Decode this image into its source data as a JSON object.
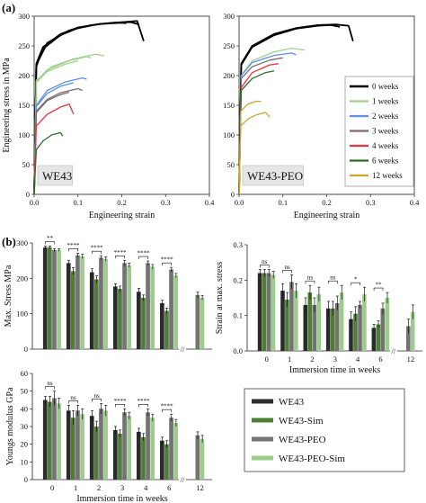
{
  "panel_letters": {
    "a": "(a)",
    "b": "(b)"
  },
  "colors": {
    "0 weeks": "#000000",
    "1 weeks": "#9fd18c",
    "2 weeks": "#5b8fe6",
    "3 weeks": "#7a6a72",
    "4 weeks": "#e3343f",
    "6 weeks": "#2e6b2a",
    "12 weeks": "#c9a52b",
    "WE43": "#2b2b2b",
    "WE43-Sim": "#4e7d35",
    "WE43-PEO": "#737373",
    "WE43-PEO-Sim": "#9ccc8b"
  },
  "chart_data": [
    {
      "type": "line",
      "title": "",
      "material_label": "WE43",
      "xlabel": "Engineering strain",
      "ylabel": "Engineering stress in MPa",
      "xlim": [
        0,
        0.4
      ],
      "ylim": [
        0,
        300
      ],
      "xticks": [
        "0.0",
        "0.1",
        "0.2",
        "0.3",
        "0.4"
      ],
      "yticks": [
        "0",
        "50",
        "100",
        "150",
        "200",
        "250",
        "300"
      ],
      "series": [
        {
          "name": "0 weeks",
          "curves": [
            [
              [
                0,
                0
              ],
              [
                0.005,
                215
              ],
              [
                0.02,
                245
              ],
              [
                0.06,
                268
              ],
              [
                0.1,
                280
              ],
              [
                0.15,
                287
              ],
              [
                0.2,
                290
              ],
              [
                0.22,
                291
              ],
              [
                0.235,
                292
              ],
              [
                0.25,
                258
              ]
            ],
            [
              [
                0,
                0
              ],
              [
                0.005,
                220
              ],
              [
                0.02,
                248
              ],
              [
                0.06,
                270
              ],
              [
                0.1,
                281
              ],
              [
                0.15,
                287
              ],
              [
                0.2,
                289
              ],
              [
                0.21,
                288
              ]
            ],
            [
              [
                0,
                0
              ],
              [
                0.005,
                218
              ],
              [
                0.03,
                255
              ],
              [
                0.08,
                276
              ],
              [
                0.13,
                285
              ],
              [
                0.18,
                289
              ],
              [
                0.22,
                290
              ],
              [
                0.24,
                286
              ]
            ]
          ]
        },
        {
          "name": "1 weeks",
          "curves": [
            [
              [
                0,
                0
              ],
              [
                0.005,
                190
              ],
              [
                0.03,
                210
              ],
              [
                0.08,
                225
              ],
              [
                0.12,
                232
              ],
              [
                0.13,
                230
              ]
            ],
            [
              [
                0,
                0
              ],
              [
                0.005,
                188
              ],
              [
                0.04,
                215
              ],
              [
                0.09,
                228
              ],
              [
                0.14,
                236
              ],
              [
                0.16,
                233
              ]
            ],
            [
              [
                0,
                0
              ],
              [
                0.005,
                192
              ],
              [
                0.03,
                207
              ],
              [
                0.07,
                219
              ],
              [
                0.1,
                225
              ]
            ]
          ]
        },
        {
          "name": "2 weeks",
          "curves": [
            [
              [
                0,
                0
              ],
              [
                0.005,
                150
              ],
              [
                0.03,
                175
              ],
              [
                0.07,
                189
              ],
              [
                0.11,
                196
              ],
              [
                0.12,
                194
              ]
            ],
            [
              [
                0,
                0
              ],
              [
                0.005,
                148
              ],
              [
                0.03,
                170
              ],
              [
                0.06,
                182
              ],
              [
                0.09,
                188
              ]
            ]
          ]
        },
        {
          "name": "3 weeks",
          "curves": [
            [
              [
                0,
                0
              ],
              [
                0.005,
                140
              ],
              [
                0.03,
                160
              ],
              [
                0.06,
                171
              ],
              [
                0.1,
                178
              ],
              [
                0.11,
                175
              ]
            ],
            [
              [
                0,
                0
              ],
              [
                0.005,
                138
              ],
              [
                0.03,
                158
              ],
              [
                0.06,
                168
              ],
              [
                0.08,
                172
              ]
            ]
          ]
        },
        {
          "name": "4 weeks",
          "curves": [
            [
              [
                0,
                0
              ],
              [
                0.005,
                115
              ],
              [
                0.03,
                135
              ],
              [
                0.06,
                147
              ],
              [
                0.08,
                152
              ],
              [
                0.09,
                135
              ]
            ]
          ]
        },
        {
          "name": "6 weeks",
          "curves": [
            [
              [
                0,
                0
              ],
              [
                0.005,
                75
              ],
              [
                0.02,
                90
              ],
              [
                0.04,
                100
              ],
              [
                0.06,
                104
              ],
              [
                0.065,
                98
              ]
            ]
          ]
        }
      ]
    },
    {
      "type": "line",
      "title": "",
      "material_label": "WE43-PEO",
      "xlabel": "Engineering strain",
      "ylabel": "",
      "xlim": [
        0,
        0.4
      ],
      "ylim": [
        0,
        300
      ],
      "xticks": [
        "0.0",
        "0.1",
        "0.2",
        "0.3",
        "0.4"
      ],
      "yticks": [
        "0",
        "50",
        "100",
        "150",
        "200",
        "250",
        "300"
      ],
      "series": [
        {
          "name": "0 weeks",
          "curves": [
            [
              [
                0,
                0
              ],
              [
                0.005,
                220
              ],
              [
                0.03,
                250
              ],
              [
                0.08,
                270
              ],
              [
                0.13,
                280
              ],
              [
                0.18,
                285
              ],
              [
                0.22,
                286
              ],
              [
                0.25,
                284
              ],
              [
                0.26,
                258
              ]
            ],
            [
              [
                0,
                0
              ],
              [
                0.005,
                218
              ],
              [
                0.03,
                248
              ],
              [
                0.08,
                268
              ],
              [
                0.13,
                279
              ],
              [
                0.18,
                284
              ],
              [
                0.21,
                285
              ],
              [
                0.23,
                282
              ]
            ]
          ]
        },
        {
          "name": "1 weeks",
          "curves": [
            [
              [
                0,
                0
              ],
              [
                0.005,
                200
              ],
              [
                0.03,
                225
              ],
              [
                0.08,
                240
              ],
              [
                0.12,
                246
              ],
              [
                0.15,
                243
              ]
            ]
          ]
        },
        {
          "name": "2 weeks",
          "curves": [
            [
              [
                0,
                0
              ],
              [
                0.005,
                200
              ],
              [
                0.03,
                222
              ],
              [
                0.08,
                234
              ],
              [
                0.12,
                238
              ],
              [
                0.13,
                235
              ]
            ]
          ]
        },
        {
          "name": "3 weeks",
          "curves": [
            [
              [
                0,
                0
              ],
              [
                0.005,
                195
              ],
              [
                0.03,
                215
              ],
              [
                0.07,
                226
              ],
              [
                0.1,
                230
              ]
            ]
          ]
        },
        {
          "name": "4 weeks",
          "curves": [
            [
              [
                0,
                0
              ],
              [
                0.005,
                180
              ],
              [
                0.03,
                205
              ],
              [
                0.07,
                218
              ],
              [
                0.09,
                220
              ]
            ]
          ]
        },
        {
          "name": "6 weeks",
          "curves": [
            [
              [
                0,
                0
              ],
              [
                0.005,
                175
              ],
              [
                0.03,
                195
              ],
              [
                0.06,
                205
              ],
              [
                0.08,
                208
              ]
            ]
          ]
        },
        {
          "name": "12 weeks",
          "curves": [
            [
              [
                0,
                0
              ],
              [
                0.004,
                115
              ],
              [
                0.02,
                127
              ],
              [
                0.04,
                134
              ],
              [
                0.06,
                138
              ],
              [
                0.07,
                130
              ]
            ],
            [
              [
                0,
                0
              ],
              [
                0.004,
                140
              ],
              [
                0.02,
                152
              ],
              [
                0.04,
                157
              ],
              [
                0.05,
                156
              ]
            ]
          ]
        }
      ]
    },
    {
      "type": "bar",
      "ylabel": "Max. Stress MPa",
      "xlabel": "",
      "ylim": [
        0,
        300
      ],
      "yticks": [
        "0",
        "100",
        "200",
        "300"
      ],
      "categories": [
        "0",
        "1",
        "2",
        "3",
        "4",
        "6",
        "12"
      ],
      "series": [
        {
          "name": "WE43",
          "values": [
            287,
            243,
            217,
            177,
            162,
            130,
            null
          ],
          "err": [
            4,
            8,
            10,
            8,
            10,
            8,
            null
          ]
        },
        {
          "name": "WE43-Sim",
          "values": [
            287,
            220,
            197,
            170,
            145,
            108,
            null
          ],
          "err": [
            4,
            10,
            10,
            8,
            8,
            8,
            null
          ]
        },
        {
          "name": "WE43-PEO",
          "values": [
            280,
            265,
            258,
            243,
            243,
            225,
            153
          ],
          "err": [
            4,
            6,
            6,
            8,
            6,
            6,
            8
          ]
        },
        {
          "name": "WE43-PEO-Sim",
          "values": [
            280,
            262,
            255,
            237,
            233,
            208,
            145
          ],
          "err": [
            4,
            6,
            6,
            6,
            6,
            6,
            6
          ]
        }
      ],
      "significance": [
        "**",
        "****",
        "****",
        "****",
        "****",
        "****"
      ]
    },
    {
      "type": "bar",
      "ylabel": "Strain at max. stress",
      "xlabel": "Immersion time in weeks",
      "ylim": [
        0,
        0.3
      ],
      "yticks": [
        "0.0",
        "0.1",
        "0.2",
        "0.3"
      ],
      "categories": [
        "0",
        "1",
        "2",
        "3",
        "4",
        "6",
        "12"
      ],
      "series": [
        {
          "name": "WE43",
          "values": [
            0.22,
            0.17,
            0.13,
            0.12,
            0.09,
            0.065,
            null
          ],
          "err": [
            0.01,
            0.02,
            0.02,
            0.02,
            0.02,
            0.01,
            null
          ]
        },
        {
          "name": "WE43-Sim",
          "values": [
            0.22,
            0.145,
            0.165,
            0.12,
            0.105,
            0.075,
            null
          ],
          "err": [
            0.01,
            0.02,
            0.02,
            0.02,
            0.02,
            0.01,
            null
          ]
        },
        {
          "name": "WE43-PEO",
          "values": [
            0.22,
            0.195,
            0.13,
            0.135,
            0.13,
            0.12,
            0.07
          ],
          "err": [
            0.01,
            0.02,
            0.02,
            0.02,
            0.01,
            0.015,
            0.02
          ]
        },
        {
          "name": "WE43-PEO-Sim",
          "values": [
            0.215,
            0.17,
            0.16,
            0.165,
            0.16,
            0.15,
            0.11
          ],
          "err": [
            0.01,
            0.02,
            0.02,
            0.02,
            0.02,
            0.015,
            0.02
          ]
        }
      ],
      "significance": [
        "ns",
        "ns",
        "ns",
        "ns",
        "*",
        "**"
      ]
    },
    {
      "type": "bar",
      "ylabel": "Youngs modulus GPa",
      "xlabel": "Immersion time in weeks",
      "ylim": [
        0,
        60
      ],
      "yticks": [
        "0",
        "10",
        "20",
        "30",
        "40",
        "50",
        "60"
      ],
      "categories": [
        "0",
        "1",
        "2",
        "3",
        "4",
        "6",
        "12"
      ],
      "series": [
        {
          "name": "WE43",
          "values": [
            45,
            39,
            36,
            28,
            27,
            22,
            null
          ],
          "err": [
            2,
            3,
            3,
            2,
            2,
            2,
            null
          ]
        },
        {
          "name": "WE43-Sim",
          "values": [
            44,
            35,
            30,
            26,
            24,
            20,
            null
          ],
          "err": [
            3,
            4,
            3,
            2,
            2,
            2,
            null
          ]
        },
        {
          "name": "WE43-PEO",
          "values": [
            46,
            39,
            40,
            38,
            38,
            35,
            25
          ],
          "err": [
            4,
            3,
            3,
            2,
            2,
            2,
            2
          ]
        },
        {
          "name": "WE43-PEO-Sim",
          "values": [
            43,
            37,
            39,
            36,
            35,
            32,
            23
          ],
          "err": [
            3,
            3,
            3,
            2,
            2,
            2,
            2
          ]
        }
      ],
      "significance": [
        "ns",
        "ns",
        "ns",
        "****",
        "****",
        "****"
      ]
    }
  ],
  "legend_a": [
    "0 weeks",
    "1 weeks",
    "2 weeks",
    "3 weeks",
    "4 weeks",
    "6 weeks",
    "12 weeks"
  ],
  "legend_b": [
    "WE43",
    "WE43-Sim",
    "WE43-PEO",
    "WE43-PEO-Sim"
  ]
}
